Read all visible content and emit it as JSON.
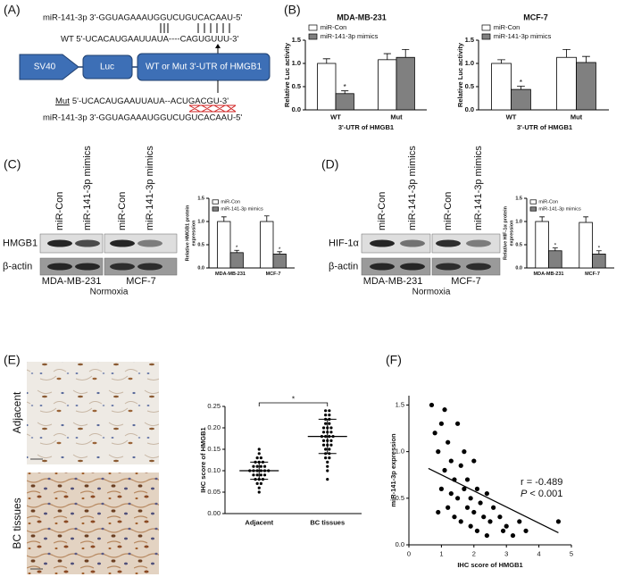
{
  "panel_labels": [
    "(A)",
    "(B)",
    "(C)",
    "(D)",
    "(E)",
    "(F)"
  ],
  "diagram": {
    "mir_top": "miR-141-3p 3'-GGUAGAAAUGGUCUGUCACAAU-5'",
    "wt": "WT 5'-UCACAUGAAUUAUA----CAGUGUUU-3'",
    "sv40": "SV40",
    "luc": "Luc",
    "utr": "WT or Mut 3'-UTR of HMGB1",
    "mut_label": "Mut",
    "mut_sequence": "5'-UCACAUGAAUUAUA--ACUGACGU-3'",
    "mir_bottom": "miR-141-3p 3'-GGUAGAAAUGGUCUGUCACAAU-5'"
  },
  "blots": [
    {
      "lanes": [
        "miR-Con",
        "miR-141-3p mimics",
        "miR-Con",
        "miR-141-3p mimics"
      ],
      "rows": [
        "HMGB1",
        "β-actin"
      ],
      "cells": [
        "MDA-MB-231",
        "MCF-7"
      ],
      "condition": "Normoxia"
    },
    {
      "lanes": [
        "miR-Con",
        "miR-141-3p mimics",
        "miR-Con",
        "miR-141-3p mimics"
      ],
      "rows": [
        "HIF-1α",
        "β-actin"
      ],
      "cells": [
        "MDA-MB-231",
        "MCF-7"
      ],
      "condition": "Normoxia"
    }
  ],
  "tissue_labels": [
    "Adjacent",
    "BC tissues"
  ],
  "chart_data": [
    {
      "type": "bar",
      "title": "MDA-MB-231",
      "y_label": "Relative Luc activity",
      "x_label": "3'-UTR of HMGB1",
      "categories": [
        "WT",
        "Mut"
      ],
      "series": [
        {
          "name": "miR-Con",
          "color": "#ffffff",
          "values": [
            1.0,
            1.08
          ],
          "errors": [
            0.1,
            0.13
          ]
        },
        {
          "name": "miR-141-3p mimics",
          "color": "#808080",
          "values": [
            0.35,
            1.13
          ],
          "errors": [
            0.06,
            0.17
          ]
        }
      ],
      "annotations": [
        {
          "text": "*",
          "category": "WT",
          "series": "miR-141-3p mimics"
        }
      ],
      "ylim": [
        0,
        1.5
      ],
      "yticks": [
        {
          "value": 0,
          "label": "0.0"
        },
        {
          "value": 0.5,
          "label": "0.5"
        },
        {
          "value": 1,
          "label": "1.0"
        },
        {
          "value": 1.5,
          "label": "1.5"
        }
      ]
    },
    {
      "type": "bar",
      "title": "MCF-7",
      "y_label": "Relative Luc activity",
      "x_label": "3'-UTR of HMGB1",
      "categories": [
        "WT",
        "Mut"
      ],
      "series": [
        {
          "name": "miR-Con",
          "color": "#ffffff",
          "values": [
            1.0,
            1.13
          ],
          "errors": [
            0.08,
            0.17
          ]
        },
        {
          "name": "miR-141-3p mimics",
          "color": "#808080",
          "values": [
            0.44,
            1.02
          ],
          "errors": [
            0.07,
            0.13
          ]
        }
      ],
      "annotations": [
        {
          "text": "*",
          "category": "WT",
          "series": "miR-141-3p mimics"
        }
      ],
      "ylim": [
        0,
        1.5
      ],
      "yticks": [
        {
          "value": 0,
          "label": "0.0"
        },
        {
          "value": 0.5,
          "label": "0.5"
        },
        {
          "value": 1,
          "label": "1.0"
        },
        {
          "value": 1.5,
          "label": "1.5"
        }
      ]
    },
    {
      "type": "bar",
      "y_label": [
        "Relative HMGB1 protein",
        "expression"
      ],
      "categories": [
        "MDA-MB-231",
        "MCF-7"
      ],
      "series": [
        {
          "name": "miR-Con",
          "color": "#ffffff",
          "values": [
            1.0,
            1.0
          ],
          "errors": [
            0.1,
            0.12
          ]
        },
        {
          "name": "miR-141-3p mimics",
          "color": "#808080",
          "values": [
            0.33,
            0.3
          ],
          "errors": [
            0.05,
            0.05
          ]
        }
      ],
      "annotations": [
        {
          "text": "*",
          "category": "MDA-MB-231",
          "series": "miR-141-3p mimics"
        },
        {
          "text": "*",
          "category": "MCF-7",
          "series": "miR-141-3p mimics"
        }
      ],
      "ylim": [
        0,
        1.5
      ],
      "yticks": [
        {
          "value": 0,
          "label": "0.0"
        },
        {
          "value": 0.5,
          "label": "0.5"
        },
        {
          "value": 1,
          "label": "1.0"
        },
        {
          "value": 1.5,
          "label": "1.5"
        }
      ]
    },
    {
      "type": "bar",
      "y_label": [
        "Relative HIF-1α protein",
        "expression"
      ],
      "categories": [
        "MDA-MB-231",
        "MCF-7"
      ],
      "series": [
        {
          "name": "miR-Con",
          "color": "#ffffff",
          "values": [
            1.0,
            0.98
          ],
          "errors": [
            0.1,
            0.12
          ]
        },
        {
          "name": "miR-141-3p mimics",
          "color": "#808080",
          "values": [
            0.37,
            0.3
          ],
          "errors": [
            0.06,
            0.07
          ]
        }
      ],
      "annotations": [
        {
          "text": "*",
          "category": "MDA-MB-231",
          "series": "miR-141-3p mimics"
        },
        {
          "text": "*",
          "category": "MCF-7",
          "series": "miR-141-3p mimics"
        }
      ],
      "ylim": [
        0,
        1.5
      ],
      "yticks": [
        {
          "value": 0,
          "label": "0.0"
        },
        {
          "value": 0.5,
          "label": "0.5"
        },
        {
          "value": 1,
          "label": "1.0"
        },
        {
          "value": 1.5,
          "label": "1.5"
        }
      ]
    },
    {
      "type": "strip",
      "y_label": "IHC score of HMGB1",
      "categories": [
        "Adjacent",
        "BC tissues"
      ],
      "values": [
        [
          0.05,
          0.06,
          0.07,
          0.07,
          0.08,
          0.08,
          0.08,
          0.09,
          0.09,
          0.09,
          0.09,
          0.1,
          0.1,
          0.1,
          0.1,
          0.1,
          0.1,
          0.11,
          0.11,
          0.11,
          0.11,
          0.12,
          0.12,
          0.12,
          0.13,
          0.13,
          0.14,
          0.15
        ],
        [
          0.08,
          0.1,
          0.11,
          0.12,
          0.13,
          0.13,
          0.14,
          0.14,
          0.15,
          0.15,
          0.16,
          0.16,
          0.16,
          0.17,
          0.17,
          0.17,
          0.18,
          0.18,
          0.18,
          0.18,
          0.19,
          0.19,
          0.19,
          0.2,
          0.2,
          0.2,
          0.21,
          0.21,
          0.22,
          0.22,
          0.23,
          0.23,
          0.24,
          0.24
        ]
      ],
      "means": [
        0.1,
        0.18
      ],
      "sd": [
        0.02,
        0.04
      ],
      "annotation": "*",
      "ylim": [
        0,
        0.25
      ],
      "yticks": [
        {
          "value": 0,
          "label": "0.00"
        },
        {
          "value": 0.05,
          "label": "0.05"
        },
        {
          "value": 0.1,
          "label": "0.10"
        },
        {
          "value": 0.15,
          "label": "0.15"
        },
        {
          "value": 0.2,
          "label": "0.20"
        },
        {
          "value": 0.25,
          "label": "0.25"
        }
      ]
    },
    {
      "type": "scatter",
      "x_label": "IHC score of HMGB1",
      "y_label": "miR-141-3p expression",
      "x": [
        0.7,
        0.8,
        0.9,
        1.0,
        1.0,
        1.1,
        1.2,
        1.2,
        1.3,
        1.3,
        1.4,
        1.4,
        1.5,
        1.5,
        1.6,
        1.6,
        1.7,
        1.7,
        1.8,
        1.8,
        1.9,
        1.9,
        2.0,
        2.0,
        2.1,
        2.1,
        2.2,
        2.3,
        2.4,
        2.4,
        2.5,
        2.6,
        2.8,
        2.9,
        3.0,
        3.2,
        3.4,
        3.6,
        4.6,
        1.1,
        0.9
      ],
      "y": [
        1.5,
        1.2,
        1.0,
        1.3,
        0.6,
        0.8,
        1.1,
        0.4,
        0.9,
        0.55,
        0.7,
        0.3,
        1.3,
        0.5,
        0.85,
        0.25,
        0.6,
        1.0,
        0.4,
        0.7,
        0.5,
        0.2,
        0.9,
        0.35,
        0.6,
        0.15,
        0.45,
        0.3,
        0.55,
        0.1,
        0.25,
        0.4,
        0.3,
        0.15,
        0.2,
        0.1,
        0.25,
        0.15,
        0.25,
        1.45,
        0.35
      ],
      "color": "#000000",
      "fit": {
        "x": [
          0.6,
          4.6
        ],
        "y": [
          0.82,
          0.13
        ]
      },
      "stat_r": "r = -0.489",
      "stat_p_symbol": "P",
      "stat_p_value": "< 0.001",
      "xlim": [
        0,
        5
      ],
      "xticks": [
        0,
        1,
        2,
        3,
        4,
        5
      ],
      "ylim": [
        0,
        1.6
      ],
      "yticks": [
        {
          "value": 0,
          "label": "0.0"
        },
        {
          "value": 0.5,
          "label": "0.5"
        },
        {
          "value": 1,
          "label": "1.0"
        },
        {
          "value": 1.5,
          "label": "1.5"
        }
      ]
    }
  ]
}
